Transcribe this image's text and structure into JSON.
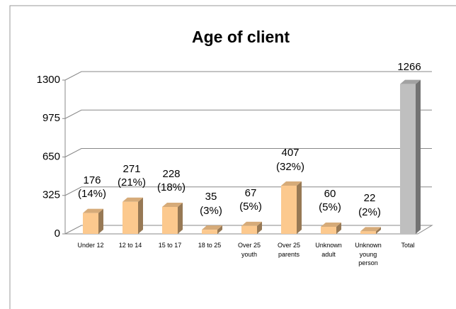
{
  "chart_data": {
    "type": "bar3d",
    "title": "Age of client",
    "categories": [
      "Under 12",
      "12 to 14",
      "15 to 17",
      "18 to 25",
      "Over 25 youth",
      "Over 25 parents",
      "Unknown adult",
      "Unknown young person",
      "Total"
    ],
    "values": [
      176,
      271,
      228,
      35,
      67,
      407,
      60,
      22,
      1266
    ],
    "value_labels": [
      "176\n(14%)",
      "271\n(21%)",
      "228\n(18%)",
      "35\n(3%)",
      "67\n(5%)",
      "407\n(32%)",
      "60\n(5%)",
      "22\n(2%)",
      "1266"
    ],
    "colors": [
      "#fcc98e",
      "#fcc98e",
      "#fcc98e",
      "#fcc98e",
      "#fcc98e",
      "#fcc98e",
      "#fcc98e",
      "#fcc98e",
      "#bfbfbf"
    ],
    "ylim": [
      0,
      1300
    ],
    "yticks": [
      0,
      325,
      650,
      975,
      1300
    ],
    "grid": true
  }
}
